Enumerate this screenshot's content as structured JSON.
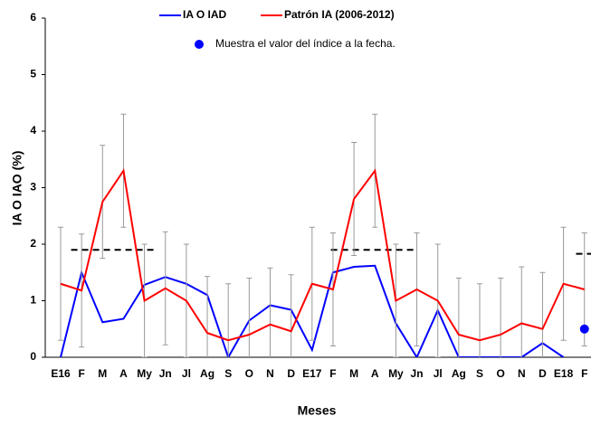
{
  "chart_data": {
    "type": "line",
    "y_label": "IA O IAO (%)",
    "x_label": "Meses",
    "categories": [
      "E16",
      "F",
      "M",
      "A",
      "My",
      "Jn",
      "Jl",
      "Ag",
      "S",
      "O",
      "N",
      "D",
      "E17",
      "F",
      "M",
      "A",
      "My",
      "Jn",
      "Jl",
      "Ag",
      "S",
      "O",
      "N",
      "D",
      "E18",
      "F"
    ],
    "series": [
      {
        "name": "IA O IAD",
        "color": "#0000ff",
        "kind": "line",
        "values": [
          0,
          1.5,
          0.62,
          0.68,
          1.28,
          1.42,
          1.3,
          1.1,
          0,
          0.65,
          0.92,
          0.84,
          0.13,
          1.5,
          1.6,
          1.62,
          0.6,
          0,
          0.83,
          0,
          0,
          0,
          0,
          0.25,
          0,
          null
        ]
      },
      {
        "name": "Patrón IA (2006-2012)",
        "color": "#ff0000",
        "kind": "line",
        "values": [
          1.3,
          1.18,
          2.75,
          3.3,
          1.0,
          1.22,
          1.0,
          0.43,
          0.3,
          0.4,
          0.58,
          0.46,
          1.3,
          1.2,
          2.8,
          3.3,
          1.0,
          1.2,
          1.0,
          0.4,
          0.3,
          0.4,
          0.6,
          0.5,
          1.3,
          1.2
        ],
        "errors": [
          1,
          1,
          1,
          1,
          1,
          1,
          1,
          1,
          1,
          1,
          1,
          1,
          1,
          1,
          1,
          1,
          1,
          1,
          1,
          1,
          1,
          1,
          1,
          1,
          1,
          1
        ]
      },
      {
        "name": "Muestra el valor del índice a la fecha.",
        "color": "#0000ff",
        "kind": "marker",
        "values": [
          null,
          null,
          null,
          null,
          null,
          null,
          null,
          null,
          null,
          null,
          null,
          null,
          null,
          null,
          null,
          null,
          null,
          null,
          null,
          null,
          null,
          null,
          null,
          null,
          null,
          0.5
        ]
      }
    ],
    "thresholds": [
      {
        "value": 1.9,
        "x": [
          0.5,
          4.5
        ]
      },
      {
        "value": 1.9,
        "x": [
          12.9,
          16.9
        ]
      },
      {
        "value": 1.83,
        "x": [
          24.6,
          25.6
        ]
      }
    ],
    "ylim": [
      0,
      6
    ],
    "yticks": [
      0,
      1,
      2,
      3,
      4,
      5,
      6
    ]
  }
}
